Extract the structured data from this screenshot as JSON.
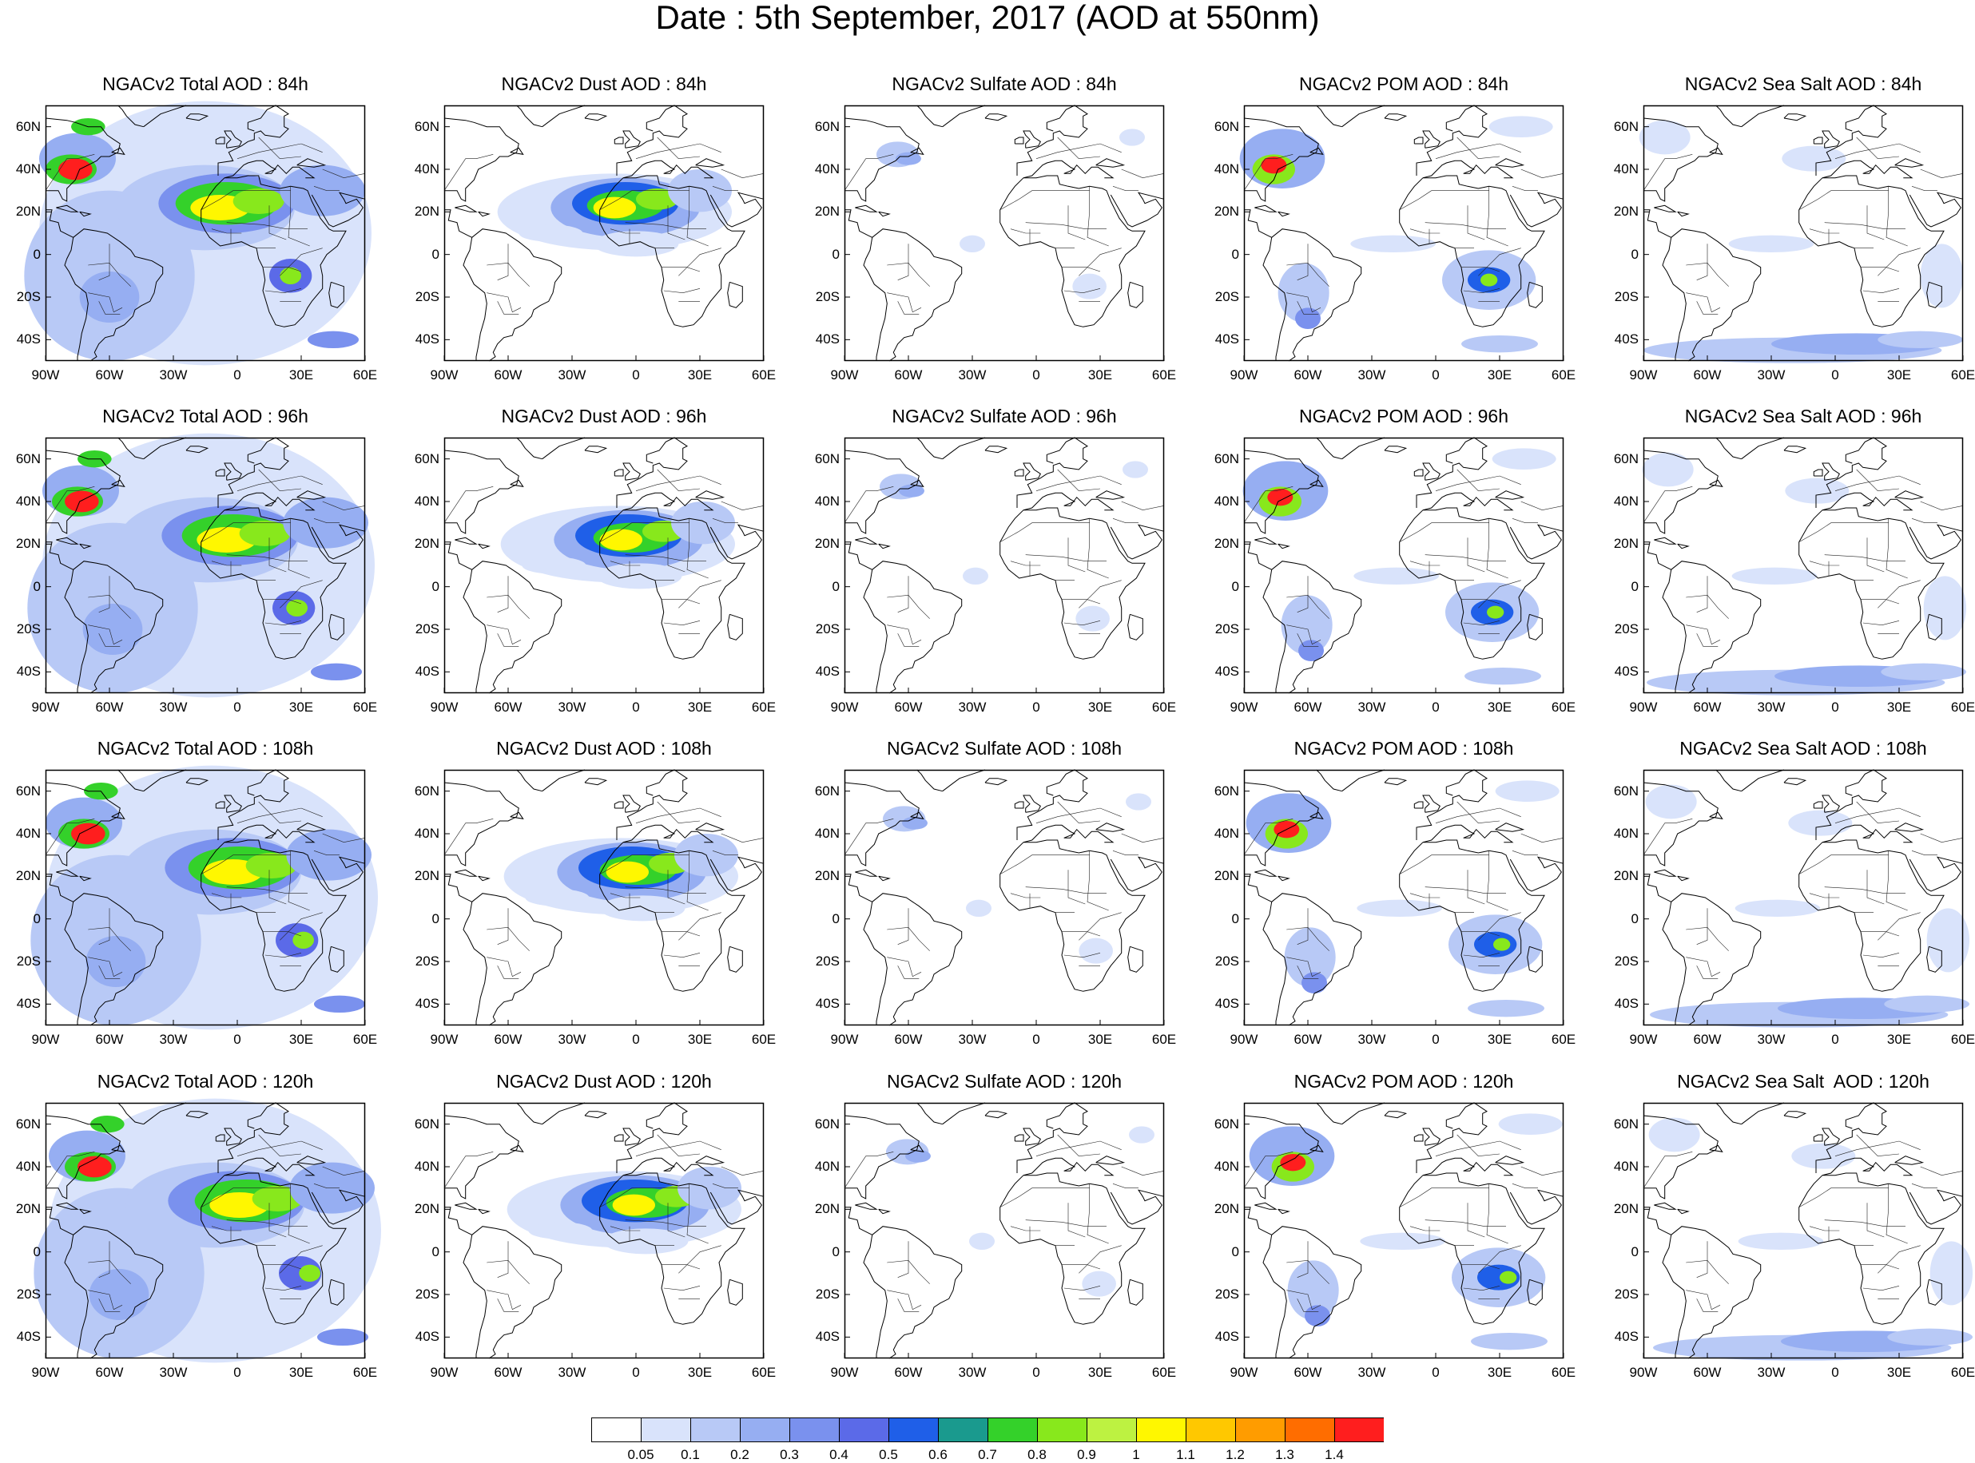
{
  "title": "Date : 5th September, 2017 (AOD at 550nm)",
  "rows": [
    [
      "NGACv2 Total AOD : 84h",
      "NGACv2 Dust AOD : 84h",
      "NGACv2 Sulfate AOD : 84h",
      "NGACv2 POM AOD : 84h",
      "NGACv2 Sea Salt AOD : 84h"
    ],
    [
      "NGACv2 Total AOD : 96h",
      "NGACv2 Dust AOD : 96h",
      "NGACv2 Sulfate AOD : 96h",
      "NGACv2 POM AOD : 96h",
      "NGACv2 Sea Salt AOD : 96h"
    ],
    [
      "NGACv2 Total AOD : 108h",
      "NGACv2 Dust AOD : 108h",
      "NGACv2 Sulfate AOD : 108h",
      "NGACv2 POM AOD : 108h",
      "NGACv2 Sea Salt AOD : 108h"
    ],
    [
      "NGACv2 Total AOD : 120h",
      "NGACv2 Dust AOD : 120h",
      "NGACv2 Sulfate AOD : 120h",
      "NGACv2 POM AOD : 120h",
      "NGACv2 Sea Salt  AOD : 120h"
    ]
  ],
  "lat_ticks": [
    "60N",
    "40N",
    "20N",
    "0",
    "20S",
    "40S"
  ],
  "lon_ticks": [
    "90W",
    "60W",
    "30W",
    "0",
    "30E",
    "60E"
  ],
  "colorbar": {
    "labels": [
      "0.05",
      "0.1",
      "0.2",
      "0.3",
      "0.4",
      "0.5",
      "0.6",
      "0.7",
      "0.8",
      "0.9",
      "1",
      "1.1",
      "1.2",
      "1.3",
      "1.4"
    ],
    "colors": [
      "#ffffff",
      "#d9e3fb",
      "#b8c9f6",
      "#96aef2",
      "#7a91ee",
      "#5b6ae8",
      "#1f5fe8",
      "#1a9a8e",
      "#34d12a",
      "#88e81c",
      "#bdf241",
      "#fff700",
      "#ffc800",
      "#ff9c00",
      "#ff6d00",
      "#ff1e1e"
    ]
  }
}
